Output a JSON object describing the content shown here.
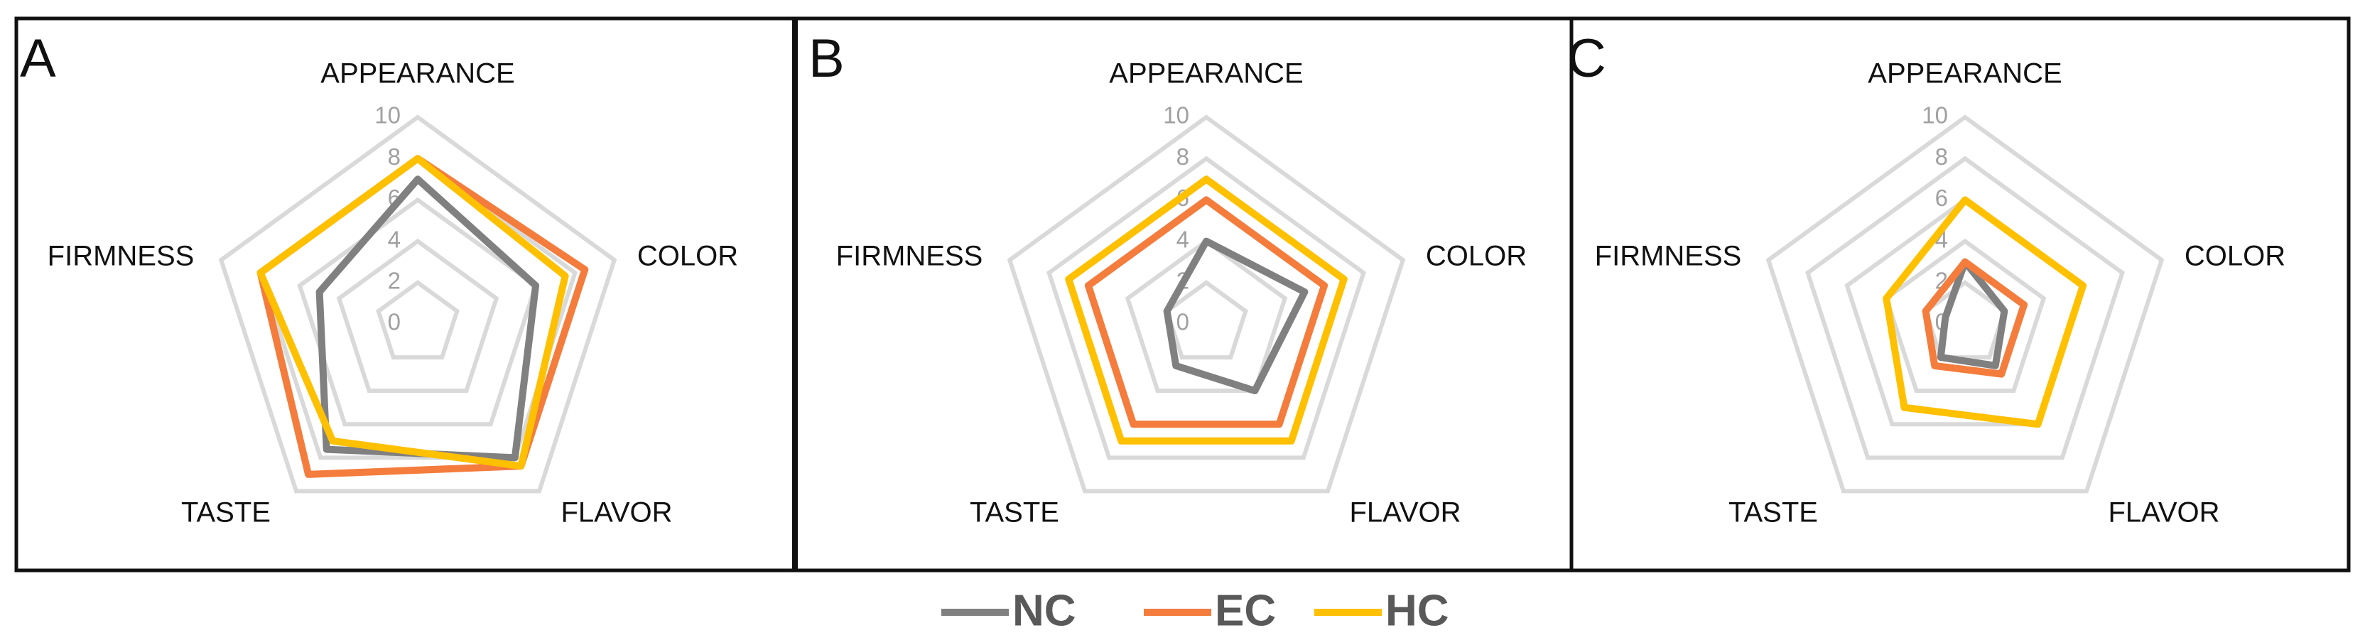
{
  "chart_data": [
    {
      "type": "radar",
      "title": "A",
      "categories": [
        "APPEARANCE",
        "COLOR",
        "FLAVOR",
        "TASTE",
        "FIRMNESS"
      ],
      "rlim": [
        0,
        10
      ],
      "rticks": [
        0,
        2,
        4,
        6,
        8,
        10
      ],
      "grid": true,
      "series": [
        {
          "name": "NC",
          "color": "#808080",
          "values": [
            7,
            6,
            8,
            7.5,
            5
          ]
        },
        {
          "name": "EC",
          "color": "#f47c3c",
          "values": [
            8,
            8.5,
            8.5,
            9,
            8
          ]
        },
        {
          "name": "HC",
          "color": "#ffc000",
          "values": [
            8,
            7.5,
            8.5,
            7,
            8
          ]
        }
      ]
    },
    {
      "type": "radar",
      "title": "B",
      "categories": [
        "APPEARANCE",
        "COLOR",
        "FLAVOR",
        "TASTE",
        "FIRMNESS"
      ],
      "rlim": [
        0,
        10
      ],
      "rticks": [
        0,
        2,
        4,
        6,
        8,
        10
      ],
      "grid": true,
      "series": [
        {
          "name": "NC",
          "color": "#808080",
          "values": [
            4,
            5,
            4,
            2.5,
            2
          ]
        },
        {
          "name": "EC",
          "color": "#f47c3c",
          "values": [
            6,
            6,
            6,
            6,
            6
          ]
        },
        {
          "name": "HC",
          "color": "#ffc000",
          "values": [
            7,
            7,
            7,
            7,
            7
          ]
        }
      ]
    },
    {
      "type": "radar",
      "title": "C",
      "categories": [
        "APPEARANCE",
        "COLOR",
        "FLAVOR",
        "TASTE",
        "FIRMNESS"
      ],
      "rlim": [
        0,
        10
      ],
      "rticks": [
        0,
        2,
        4,
        6,
        8,
        10
      ],
      "grid": true,
      "series": [
        {
          "name": "NC",
          "color": "#808080",
          "values": [
            3,
            2,
            2.5,
            2,
            1
          ]
        },
        {
          "name": "EC",
          "color": "#f47c3c",
          "values": [
            3,
            3,
            3,
            2.5,
            2
          ]
        },
        {
          "name": "HC",
          "color": "#ffc000",
          "values": [
            6,
            6,
            6,
            5,
            4
          ]
        }
      ]
    }
  ]
}
